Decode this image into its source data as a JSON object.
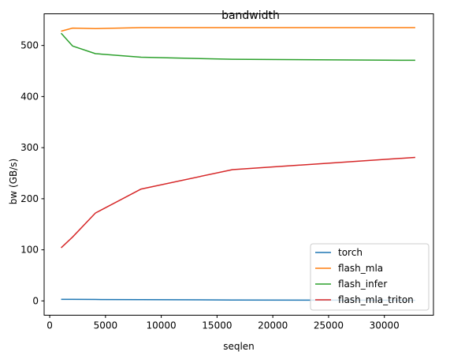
{
  "chart_data": {
    "type": "line",
    "title": "bandwidth",
    "xlabel": "seqlen",
    "ylabel": "bw (GB/s)",
    "xlim": [
      -500,
      34400
    ],
    "ylim": [
      -28,
      562
    ],
    "xticks": [
      0,
      5000,
      10000,
      15000,
      20000,
      25000,
      30000
    ],
    "yticks": [
      0,
      100,
      200,
      300,
      400,
      500
    ],
    "x": [
      1024,
      2048,
      4096,
      8192,
      16384,
      32768
    ],
    "legend_position": "lower-right",
    "series": [
      {
        "name": "torch",
        "color": "#1f77b4",
        "values": [
          3,
          3,
          2.8,
          2.5,
          1.8,
          1.2
        ]
      },
      {
        "name": "flash_mla",
        "color": "#ff7f0e",
        "values": [
          528,
          534,
          533,
          535,
          535,
          535
        ]
      },
      {
        "name": "flash_infer",
        "color": "#2ca02c",
        "values": [
          524,
          499,
          484,
          477,
          473,
          471
        ]
      },
      {
        "name": "flash_mla_triton",
        "color": "#d62728",
        "values": [
          104,
          125,
          172,
          219,
          257,
          281
        ]
      }
    ]
  }
}
